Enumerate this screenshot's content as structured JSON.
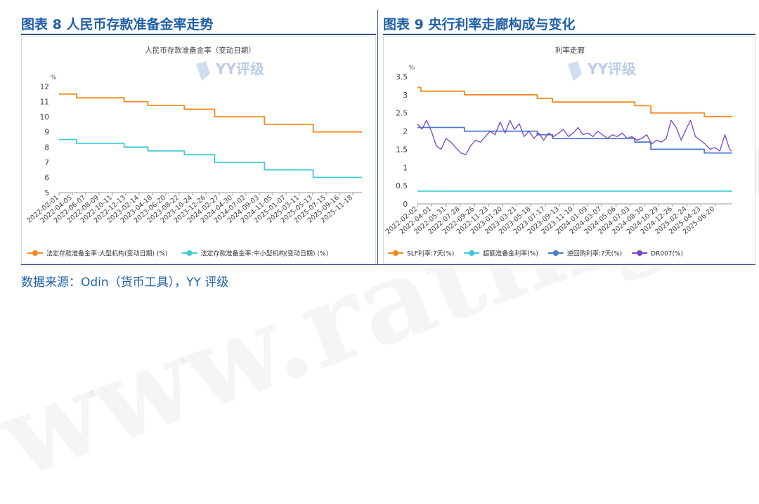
{
  "panels": {
    "left": {
      "figure_title": "图表 8 人民币存款准备金率走势"
    },
    "right": {
      "figure_title": "图表 9 央行利率走廊构成与变化"
    }
  },
  "source_note": "数据来源：Odin（货币工具），YY 评级",
  "watermark": {
    "logo_text": "YY评级",
    "site_text": "www.ratingdog.cn"
  },
  "colors": {
    "orange": "#F28A1E",
    "cyan": "#3ECBD6",
    "blue": "#4A7BD0",
    "purple": "#7B45C6",
    "title_blue": "#1f5fa8"
  },
  "chart_data": [
    {
      "type": "line",
      "title": "人民币存款准备金率（变动日期）",
      "ylabel": "%",
      "ylim": [
        5,
        12
      ],
      "yticks": [
        5,
        6,
        7,
        8,
        9,
        10,
        11,
        12
      ],
      "x_range": [
        "2022-02-01",
        "2025-12-31"
      ],
      "xticks": [
        "2022-02-01",
        "2022-04-05",
        "2022-06-07",
        "2022-08-09",
        "2022-10-11",
        "2022-12-13",
        "2023-02-14",
        "2023-04-18",
        "2023-06-20",
        "2023-08-22",
        "2023-10-24",
        "2023-12-26",
        "2024-02-27",
        "2024-04-30",
        "2024-07-02",
        "2024-09-03",
        "2024-11-05",
        "2025-01-07",
        "2025-03-11",
        "2025-05-13",
        "2025-07-15",
        "2025-09-16",
        "2025-11-18"
      ],
      "step": true,
      "legend_position": "bottom",
      "grid": false,
      "series": [
        {
          "name": "法定存款准备金率:大型机构(变动日期) (%)",
          "color": "orange",
          "x": [
            "2022-02-01",
            "2022-04-25",
            "2022-12-05",
            "2023-03-27",
            "2023-09-15",
            "2024-02-05",
            "2024-09-27",
            "2025-05-15",
            "2025-12-31"
          ],
          "y": [
            11.5,
            11.25,
            11.0,
            10.75,
            10.5,
            10.0,
            9.5,
            9.0,
            9.0
          ]
        },
        {
          "name": "法定存款准备金率:中小型机构(变动日期) (%)",
          "color": "cyan",
          "x": [
            "2022-02-01",
            "2022-04-25",
            "2022-12-05",
            "2023-03-27",
            "2023-09-15",
            "2024-02-05",
            "2024-09-27",
            "2025-05-15",
            "2025-12-31"
          ],
          "y": [
            8.5,
            8.25,
            8.0,
            7.75,
            7.5,
            7.0,
            6.5,
            6.0,
            6.0
          ]
        }
      ]
    },
    {
      "type": "line",
      "title": "利率走廊",
      "ylabel": "%",
      "ylim": [
        0,
        3.5
      ],
      "yticks": [
        0,
        0.5,
        1,
        1.5,
        2,
        2.5,
        3,
        3.5
      ],
      "x_range": [
        "2022-02-01",
        "2025-08-31"
      ],
      "xticks": [
        "2022-02-02",
        "2022-04-01",
        "2022-05-31",
        "2022-07-28",
        "2022-09-26",
        "2022-11-23",
        "2023-01-20",
        "2023-03-21",
        "2023-05-18",
        "2023-07-17",
        "2023-09-13",
        "2023-11-10",
        "2024-01-09",
        "2024-03-07",
        "2024-05-06",
        "2024-07-03",
        "2024-08-30",
        "2024-10-29",
        "2024-12-26",
        "2025-02-24",
        "2025-04-23",
        "2025-06-20"
      ],
      "legend_position": "bottom",
      "grid": false,
      "series": [
        {
          "name": "SLF利率:7天(%)",
          "color": "orange",
          "step": true,
          "x": [
            "2022-02-01",
            "2022-02-15",
            "2022-08-15",
            "2023-06-13",
            "2023-08-15",
            "2024-07-22",
            "2024-09-27",
            "2025-05-07",
            "2025-08-31"
          ],
          "y": [
            3.2,
            3.1,
            3.0,
            2.9,
            2.8,
            2.7,
            2.5,
            2.4,
            2.4
          ]
        },
        {
          "name": "超额准备金利率(%)",
          "color": "cyan",
          "step": true,
          "x": [
            "2022-02-01",
            "2025-08-31"
          ],
          "y": [
            0.35,
            0.35
          ]
        },
        {
          "name": "逆回购利率:7天(%)",
          "color": "blue",
          "step": true,
          "x": [
            "2022-02-01",
            "2022-08-15",
            "2023-06-13",
            "2023-08-15",
            "2024-07-22",
            "2024-09-27",
            "2025-05-07",
            "2025-08-31"
          ],
          "y": [
            2.1,
            2.0,
            1.9,
            1.8,
            1.7,
            1.5,
            1.4,
            1.4
          ]
        },
        {
          "name": "DR007(%)",
          "color": "purple",
          "step": false,
          "x": [
            "2022-02-01",
            "2022-02-20",
            "2022-03-10",
            "2022-03-31",
            "2022-04-20",
            "2022-05-10",
            "2022-05-31",
            "2022-06-20",
            "2022-07-10",
            "2022-07-31",
            "2022-08-20",
            "2022-09-10",
            "2022-09-30",
            "2022-10-20",
            "2022-11-10",
            "2022-11-30",
            "2022-12-20",
            "2023-01-10",
            "2023-01-31",
            "2023-02-20",
            "2023-03-10",
            "2023-03-31",
            "2023-04-20",
            "2023-05-10",
            "2023-05-31",
            "2023-06-20",
            "2023-07-10",
            "2023-07-31",
            "2023-08-20",
            "2023-09-10",
            "2023-09-30",
            "2023-10-20",
            "2023-11-10",
            "2023-11-30",
            "2023-12-20",
            "2024-01-10",
            "2024-01-31",
            "2024-02-20",
            "2024-03-10",
            "2024-03-31",
            "2024-04-20",
            "2024-05-10",
            "2024-05-31",
            "2024-06-20",
            "2024-07-10",
            "2024-07-31",
            "2024-08-20",
            "2024-09-10",
            "2024-09-30",
            "2024-10-20",
            "2024-11-10",
            "2024-11-30",
            "2024-12-20",
            "2025-01-10",
            "2025-01-31",
            "2025-02-20",
            "2025-03-10",
            "2025-03-31",
            "2025-04-20",
            "2025-05-10",
            "2025-05-31",
            "2025-06-20",
            "2025-07-10",
            "2025-07-31",
            "2025-08-20",
            "2025-08-31"
          ],
          "y": [
            2.2,
            2.05,
            2.3,
            2.0,
            1.6,
            1.5,
            1.8,
            1.7,
            1.55,
            1.4,
            1.35,
            1.6,
            1.75,
            1.7,
            1.85,
            2.0,
            1.9,
            2.25,
            1.95,
            2.3,
            2.05,
            2.2,
            1.85,
            2.0,
            1.8,
            1.95,
            1.75,
            1.95,
            1.85,
            1.95,
            2.05,
            1.85,
            1.95,
            2.1,
            1.9,
            1.95,
            1.85,
            2.0,
            1.9,
            1.8,
            1.9,
            1.85,
            1.95,
            1.8,
            1.85,
            1.75,
            1.8,
            1.9,
            1.65,
            1.75,
            1.7,
            1.8,
            2.3,
            2.1,
            1.75,
            2.05,
            2.3,
            1.85,
            1.75,
            1.65,
            1.5,
            1.55,
            1.45,
            1.9,
            1.5,
            1.45
          ]
        }
      ]
    }
  ]
}
